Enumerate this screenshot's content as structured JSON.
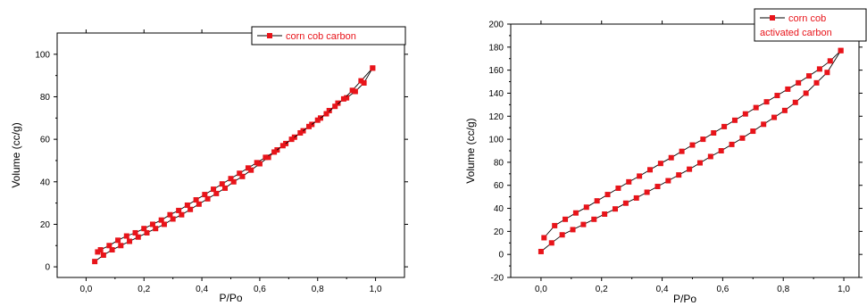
{
  "chart_data": [
    {
      "type": "line",
      "xlabel": "P/Po",
      "ylabel": "Volume (cc/g)",
      "xlim": [
        -0.1,
        1.1
      ],
      "ylim": [
        -5,
        110
      ],
      "xticks": [
        0.0,
        0.2,
        0.4,
        0.6,
        0.8,
        1.0
      ],
      "xtick_labels": [
        "0,0",
        "0,2",
        "0,4",
        "0,6",
        "0,8",
        "1,0"
      ],
      "yticks": [
        0,
        20,
        40,
        60,
        80,
        100
      ],
      "ytick_labels": [
        "0",
        "20",
        "40",
        "60",
        "80",
        "100"
      ],
      "grid": false,
      "legend_position": "top-right",
      "line_color": "#000000",
      "marker_color": "#e8141a",
      "series": [
        {
          "name": "corn cob carbon",
          "adsorption": {
            "x": [
              0.03,
              0.06,
              0.09,
              0.12,
              0.15,
              0.18,
              0.21,
              0.24,
              0.27,
              0.3,
              0.33,
              0.36,
              0.39,
              0.42,
              0.45,
              0.48,
              0.51,
              0.54,
              0.57,
              0.6,
              0.63,
              0.66,
              0.69,
              0.72,
              0.75,
              0.78,
              0.81,
              0.84,
              0.87,
              0.9,
              0.93,
              0.96,
              0.99
            ],
            "y": [
              2.5,
              5.5,
              8.0,
              10.0,
              12.0,
              14.0,
              16.0,
              18.0,
              20.0,
              22.5,
              24.5,
              27.0,
              29.5,
              32.0,
              34.5,
              37.0,
              40.0,
              42.5,
              45.5,
              48.5,
              51.5,
              55.0,
              58.0,
              61.0,
              64.0,
              67.0,
              70.0,
              73.5,
              77.0,
              79.5,
              82.5,
              86.5,
              93.5
            ]
          },
          "desorption": {
            "x": [
              0.99,
              0.95,
              0.92,
              0.89,
              0.86,
              0.83,
              0.8,
              0.77,
              0.74,
              0.71,
              0.68,
              0.65,
              0.62,
              0.59,
              0.56,
              0.53,
              0.5,
              0.47,
              0.44,
              0.41,
              0.38,
              0.35,
              0.32,
              0.29,
              0.26,
              0.23,
              0.2,
              0.17,
              0.14,
              0.11,
              0.08,
              0.05,
              0.04
            ],
            "y": [
              93.5,
              87.5,
              83.0,
              79.0,
              75.5,
              72.0,
              69.0,
              66.0,
              63.0,
              60.0,
              57.0,
              54.0,
              51.5,
              49.0,
              46.5,
              44.0,
              41.5,
              39.0,
              36.5,
              34.0,
              31.5,
              29.0,
              26.5,
              24.5,
              22.0,
              20.0,
              18.0,
              16.0,
              14.5,
              12.5,
              10.0,
              8.0,
              7.0
            ]
          }
        }
      ]
    },
    {
      "type": "line",
      "xlabel": "P/Po",
      "ylabel": "Volume (cc/g)",
      "xlim": [
        -0.1,
        1.05
      ],
      "ylim": [
        -20,
        200
      ],
      "xticks": [
        0.0,
        0.2,
        0.4,
        0.6,
        0.8,
        1.0
      ],
      "xtick_labels": [
        "0,0",
        "0,2",
        "0,4",
        "0,6",
        "0,8",
        "1,0"
      ],
      "yticks": [
        -20,
        0,
        20,
        40,
        60,
        80,
        100,
        120,
        140,
        160,
        180,
        200
      ],
      "ytick_labels": [
        "-20",
        "0",
        "20",
        "40",
        "60",
        "80",
        "100",
        "120",
        "140",
        "160",
        "180",
        "200"
      ],
      "grid": false,
      "legend_position": "top-right",
      "line_color": "#000000",
      "marker_color": "#e8141a",
      "series": [
        {
          "name": "corn cob activated carbon",
          "legend_lines": [
            "corn cob",
            "activated carbon"
          ],
          "adsorption": {
            "x": [
              0.0,
              0.035,
              0.07,
              0.105,
              0.14,
              0.175,
              0.21,
              0.245,
              0.28,
              0.315,
              0.35,
              0.385,
              0.42,
              0.455,
              0.49,
              0.525,
              0.56,
              0.595,
              0.63,
              0.665,
              0.7,
              0.735,
              0.77,
              0.805,
              0.84,
              0.875,
              0.91,
              0.945,
              0.99
            ],
            "y": [
              2.5,
              10.0,
              17.0,
              21.5,
              26.0,
              30.5,
              35.0,
              39.5,
              44.5,
              49.0,
              54.0,
              59.0,
              64.0,
              69.0,
              74.0,
              79.5,
              85.0,
              90.0,
              95.5,
              101.0,
              107.0,
              113.0,
              119.0,
              125.0,
              132.0,
              140.0,
              149.0,
              158.0,
              177.0
            ]
          },
          "desorption": {
            "x": [
              0.99,
              0.955,
              0.92,
              0.885,
              0.85,
              0.815,
              0.78,
              0.745,
              0.71,
              0.675,
              0.64,
              0.605,
              0.57,
              0.535,
              0.5,
              0.465,
              0.43,
              0.395,
              0.36,
              0.325,
              0.29,
              0.255,
              0.22,
              0.185,
              0.15,
              0.115,
              0.08,
              0.045,
              0.01
            ],
            "y": [
              177.0,
              168.0,
              161.0,
              155.0,
              149.0,
              143.5,
              138.0,
              132.5,
              127.5,
              122.0,
              116.5,
              111.0,
              105.5,
              100.0,
              95.0,
              89.5,
              84.0,
              79.0,
              73.5,
              68.0,
              63.0,
              57.5,
              52.0,
              46.5,
              41.0,
              36.0,
              30.5,
              25.0,
              14.5
            ]
          }
        }
      ]
    }
  ]
}
